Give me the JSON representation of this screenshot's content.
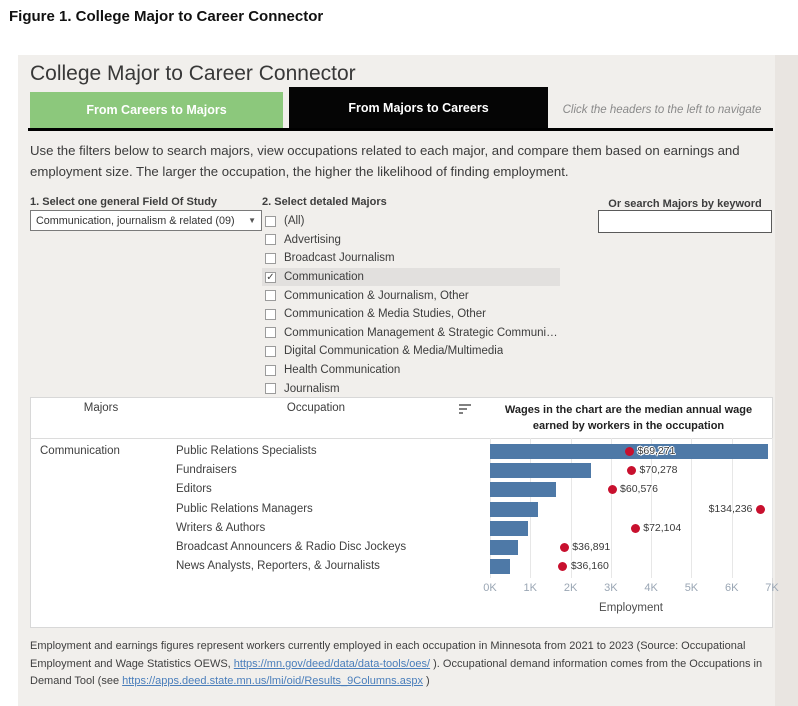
{
  "figure_caption": "Figure 1. College Major to Career Connector",
  "dashboard": {
    "title": "College Major to Career Connector",
    "tabs": [
      {
        "label": "From Careers to Majors",
        "color": "#8cc87c"
      },
      {
        "label": "From Majors to Careers",
        "color": "#050505",
        "active": true
      }
    ],
    "nav_note": "Click the headers to the left to navigate",
    "intro": "Use the filters below to search majors, view occupations related to each major, and compare them based on earnings and employment size. The larger the occupation, the higher the likelihood of finding employment.",
    "filters": {
      "field_of_study": {
        "label": "1. Select one general Field Of Study",
        "value": "Communication, journalism & related (09)"
      },
      "majors": {
        "label": "2. Select detaled Majors",
        "options": [
          {
            "label": "(All)",
            "checked": false
          },
          {
            "label": "Advertising",
            "checked": false
          },
          {
            "label": "Broadcast Journalism",
            "checked": false
          },
          {
            "label": "Communication",
            "checked": true
          },
          {
            "label": "Communication & Journalism, Other",
            "checked": false
          },
          {
            "label": "Communication & Media Studies, Other",
            "checked": false
          },
          {
            "label": "Communication Management & Strategic Communic...",
            "checked": false
          },
          {
            "label": "Digital Communication & Media/Multimedia",
            "checked": false
          },
          {
            "label": "Health Communication",
            "checked": false
          },
          {
            "label": "Journalism",
            "checked": false
          }
        ]
      },
      "search": {
        "label": "Or search Majors by keyword",
        "value": "",
        "placeholder": ""
      }
    },
    "table": {
      "majors_header": "Majors",
      "occupation_header": "Occupation",
      "wages_note_line1": "Wages in the chart are the median annual wage",
      "wages_note_line2": "earned by workers in the occupation",
      "major": "Communication"
    },
    "footer": {
      "part1": "Employment and earnings figures represent workers currently employed in each occupation in Minnesota from 2021 to 2023 (Source: Occupational Employment and Wage Statistics OEWS,  ",
      "link1": "https://mn.gov/deed/data/data-tools/oes/",
      "part2": " ). Occupational demand information comes from the Occupations in Demand Tool (see ",
      "link2": "https://apps.deed.state.mn.us/lmi/oid/Results_9Columns.aspx",
      "part3": " )"
    }
  },
  "chart_data": {
    "type": "bar",
    "categories": [
      "Public Relations Specialists",
      "Fundraisers",
      "Editors",
      "Public Relations Managers",
      "Writers & Authors",
      "Broadcast Announcers & Radio Disc Jockeys",
      "News Analysts, Reporters, & Journalists"
    ],
    "series": [
      {
        "name": "Employment",
        "type": "bar",
        "color": "#4e79a7",
        "values": [
          6900,
          2500,
          1650,
          1200,
          950,
          700,
          500
        ],
        "note": "bar lengths estimated from gridlines"
      },
      {
        "name": "Median Annual Wage",
        "type": "point",
        "color": "#c8102e",
        "values": [
          69271,
          70278,
          60576,
          134236,
          72104,
          36891,
          36160
        ],
        "labels": [
          "$69,271",
          "$70,278",
          "$60,576",
          "$134,236",
          "$72,104",
          "$36,891",
          "$36,160"
        ],
        "label_side": [
          "right",
          "right",
          "right",
          "left",
          "right",
          "right",
          "right"
        ]
      }
    ],
    "xlabel": "Employment",
    "x_ticks": [
      "0K",
      "1K",
      "2K",
      "3K",
      "4K",
      "5K",
      "6K",
      "7K"
    ],
    "xlim": [
      0,
      7000
    ],
    "wage_xlim": [
      0,
      140000
    ],
    "grid": true,
    "legend": "none",
    "note": "Wages in the chart are the median annual wage earned by workers in the occupation"
  }
}
